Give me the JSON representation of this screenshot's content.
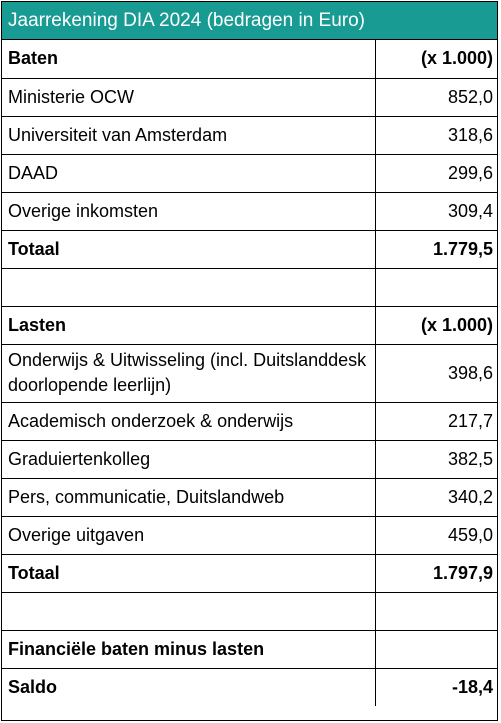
{
  "title": "Jaarrekening DIA 2024 (bedragen in Euro)",
  "baten": {
    "header": "Baten",
    "unit": "(x 1.000)",
    "rows": [
      {
        "label": "Ministerie OCW",
        "value": "852,0"
      },
      {
        "label": "Universiteit van Amsterdam",
        "value": "318,6"
      },
      {
        "label": "DAAD",
        "value": "299,6"
      },
      {
        "label": "Overige inkomsten",
        "value": "309,4"
      }
    ],
    "total_label": "Totaal",
    "total_value": "1.779,5"
  },
  "lasten": {
    "header": "Lasten",
    "unit": "(x 1.000)",
    "rows": [
      {
        "label": "Onderwijs & Uitwisseling (incl. Duitslanddesk doorlopende leerlijn)",
        "value": "398,6"
      },
      {
        "label": "Academisch onderzoek & onderwijs",
        "value": "217,7"
      },
      {
        "label": "Graduiertenkolleg",
        "value": "382,5"
      },
      {
        "label": "Pers, communicatie, Duitslandweb",
        "value": "340,2"
      },
      {
        "label": "Overige uitgaven",
        "value": "459,0"
      }
    ],
    "total_label": "Totaal",
    "total_value": "1.797,9"
  },
  "summary": {
    "label": "Financiële baten minus lasten",
    "saldo_label": "Saldo",
    "saldo_value": "-18,4"
  }
}
